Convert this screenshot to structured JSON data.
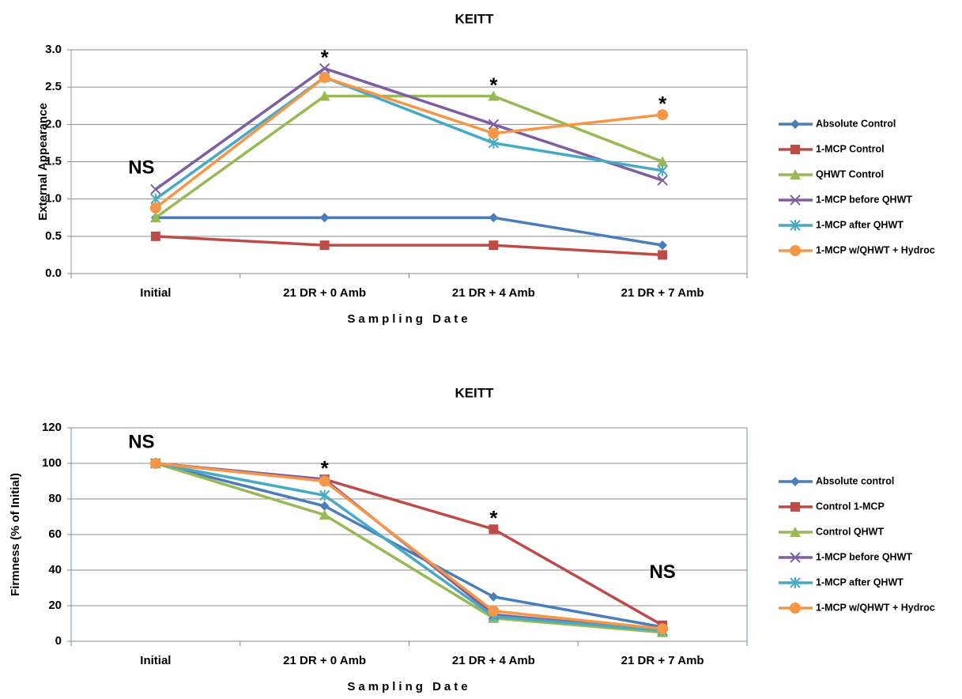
{
  "chart_data": [
    {
      "type": "line",
      "title": "KEITT",
      "x_label": "Sampling Date",
      "y_label": "External Appearance",
      "categories": [
        "Initial",
        "21 DR + 0 Amb",
        "21 DR + 4 Amb",
        "21 DR + 7 Amb"
      ],
      "ylim": [
        0,
        3
      ],
      "yticks": [
        {
          "value": 0,
          "label": "0.0"
        },
        0.5,
        {
          "value": 1,
          "label": "1.0"
        },
        1.5,
        {
          "value": 2,
          "label": "2.0"
        },
        2.5,
        {
          "value": 3,
          "label": "3.0"
        }
      ],
      "grid": true,
      "annotations": [
        "NS",
        "*",
        "*",
        "*"
      ],
      "series": [
        {
          "name": "Absolute Control",
          "color": "#4a7ebb",
          "marker": "diamond",
          "values": [
            0.75,
            0.75,
            0.75,
            0.38
          ]
        },
        {
          "name": "1-MCP Control",
          "color": "#be4b48",
          "marker": "square",
          "values": [
            0.5,
            0.38,
            0.38,
            0.25
          ]
        },
        {
          "name": "QHWT Control",
          "color": "#98b954",
          "marker": "triangle",
          "values": [
            0.75,
            2.38,
            2.38,
            1.5
          ]
        },
        {
          "name": "1-MCP before QHWT",
          "color": "#7d5fa0",
          "marker": "x",
          "values": [
            1.13,
            2.75,
            2.0,
            1.25
          ]
        },
        {
          "name": "1-MCP after QHWT",
          "color": "#46aac5",
          "marker": "star",
          "values": [
            1.0,
            2.63,
            1.75,
            1.38
          ]
        },
        {
          "name": "1-MCP w/QHWT + Hydroc",
          "color": "#f79646",
          "marker": "circle",
          "values": [
            0.88,
            2.63,
            1.88,
            2.13
          ]
        }
      ]
    },
    {
      "type": "line",
      "title": "KEITT",
      "x_label": "Sampling Date",
      "y_label": "Firmness (% of Initial)",
      "categories": [
        "Initial",
        "21 DR + 0 Amb",
        "21 DR + 4 Amb",
        "21 DR + 7 Amb"
      ],
      "ylim": [
        0,
        120
      ],
      "yticks": [
        0,
        20,
        40,
        60,
        80,
        100,
        120
      ],
      "grid": true,
      "annotations": [
        "NS",
        "*",
        "*",
        "NS"
      ],
      "series": [
        {
          "name": "Absolute control",
          "color": "#4a7ebb",
          "marker": "diamond",
          "values": [
            100,
            76,
            25,
            8
          ]
        },
        {
          "name": "Control 1-MCP",
          "color": "#be4b48",
          "marker": "square",
          "values": [
            100,
            91,
            63,
            9
          ]
        },
        {
          "name": "Control QHWT",
          "color": "#98b954",
          "marker": "triangle",
          "values": [
            100,
            71,
            13,
            5
          ]
        },
        {
          "name": "1-MCP before QHWT",
          "color": "#7d5fa0",
          "marker": "x",
          "values": [
            100,
            91,
            15,
            6
          ]
        },
        {
          "name": "1-MCP after QHWT",
          "color": "#46aac5",
          "marker": "star",
          "values": [
            100,
            82,
            14,
            6
          ]
        },
        {
          "name": "1-MCP w/QHWT + Hydroc",
          "color": "#f79646",
          "marker": "circle",
          "values": [
            100,
            90,
            17,
            7
          ]
        }
      ]
    }
  ]
}
